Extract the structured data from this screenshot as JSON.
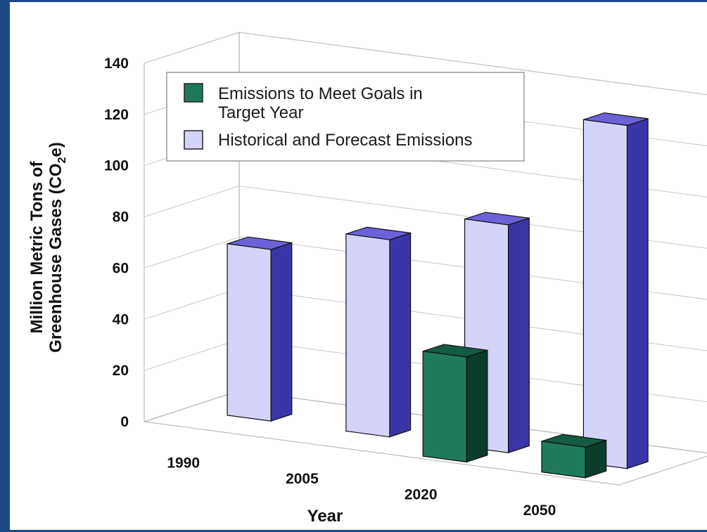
{
  "chart_data": {
    "type": "bar",
    "categories": [
      "1990",
      "2005",
      "2020",
      "2050"
    ],
    "series": [
      {
        "name": "Historical and Forecast Emissions",
        "values": [
          67,
          77,
          89,
          134
        ],
        "color": "#d4d4fa",
        "side_color": "#3a35a6",
        "top_color": "#6c62d8"
      },
      {
        "name": "Emissions to Meet Goals in Target Year",
        "values": [
          null,
          null,
          41,
          12
        ],
        "color": "#1f7a5c",
        "side_color": "#0c3d2c",
        "top_color": "#155a43"
      }
    ],
    "yticks": [
      "0",
      "20",
      "40",
      "60",
      "80",
      "100",
      "120",
      "140"
    ],
    "ylim": [
      0,
      140
    ],
    "xlabel": "Year",
    "ylabel_line1": "Million Metric Tons of",
    "ylabel_line2_main": "Greenhouse Gases (CO",
    "ylabel_sub": "2",
    "ylabel_tail": "e)",
    "legend": {
      "position": "top-left",
      "entries": [
        {
          "line1": "Emissions to Meet Goals in",
          "line2": "Target Year",
          "color": "#1f7a5c"
        },
        {
          "line1": "Historical and Forecast Emissions",
          "line2": "",
          "color": "#d4d4fa"
        }
      ]
    },
    "grid": true,
    "three_d": true
  }
}
